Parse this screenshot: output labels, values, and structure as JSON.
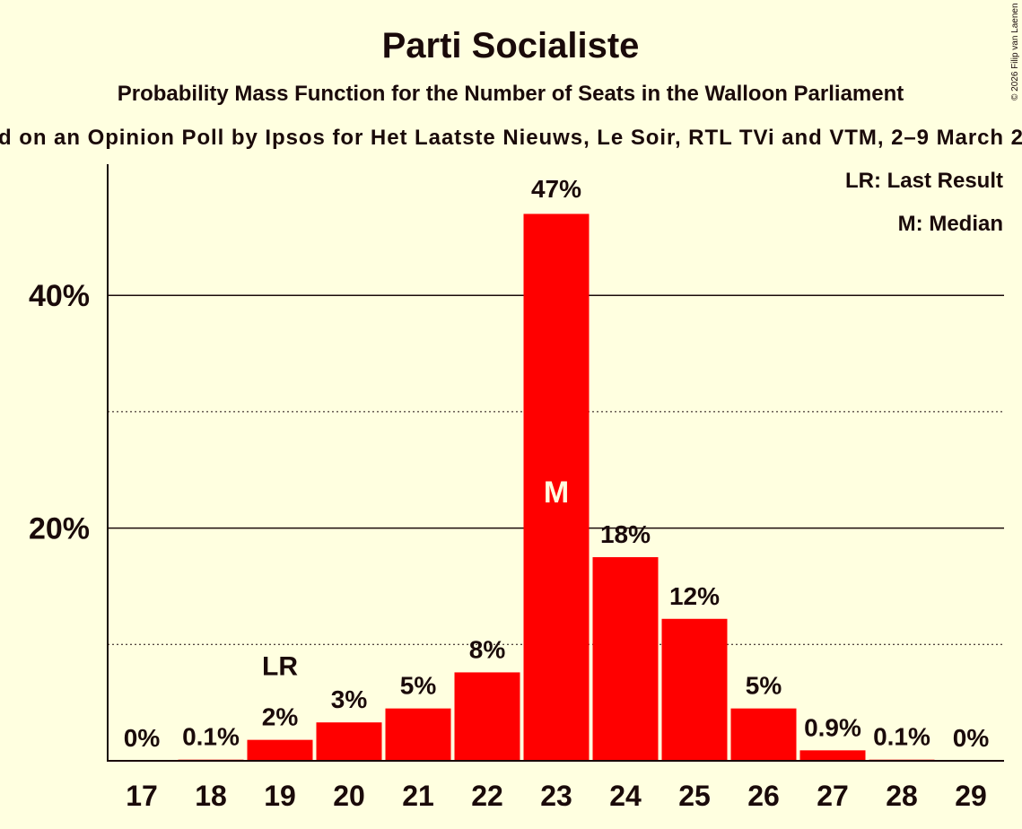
{
  "chart_data": {
    "type": "bar",
    "title": "Parti Socialiste",
    "subtitle": "Probability Mass Function for the Number of Seats in the Walloon Parliament",
    "subtitle2": "d on an Opinion Poll by Ipsos for Het Laatste Nieuws, Le Soir, RTL TVi and VTM, 2–9 March 2",
    "copyright": "© 2026 Filip van Laenen",
    "categories": [
      "17",
      "18",
      "19",
      "20",
      "21",
      "22",
      "23",
      "24",
      "25",
      "26",
      "27",
      "28",
      "29"
    ],
    "values": [
      0,
      0.1,
      1.8,
      3.3,
      4.5,
      7.6,
      47,
      17.5,
      12.2,
      4.5,
      0.9,
      0.1,
      0
    ],
    "labels": [
      "0%",
      "0.1%",
      "2%",
      "3%",
      "5%",
      "8%",
      "47%",
      "18%",
      "12%",
      "5%",
      "0.9%",
      "0.1%",
      "0%"
    ],
    "ylim": [
      0,
      50
    ],
    "yticks": [
      {
        "value": 20,
        "label": "20%"
      },
      {
        "value": 40,
        "label": "40%"
      }
    ],
    "minor_gridlines": [
      10,
      30
    ],
    "last_result": {
      "category": "19",
      "label": "LR"
    },
    "median": {
      "category": "23",
      "label": "M"
    },
    "legend": [
      "LR: Last Result",
      "M: Median"
    ],
    "legend_position": "top-right",
    "bar_color": "#ff0000"
  }
}
